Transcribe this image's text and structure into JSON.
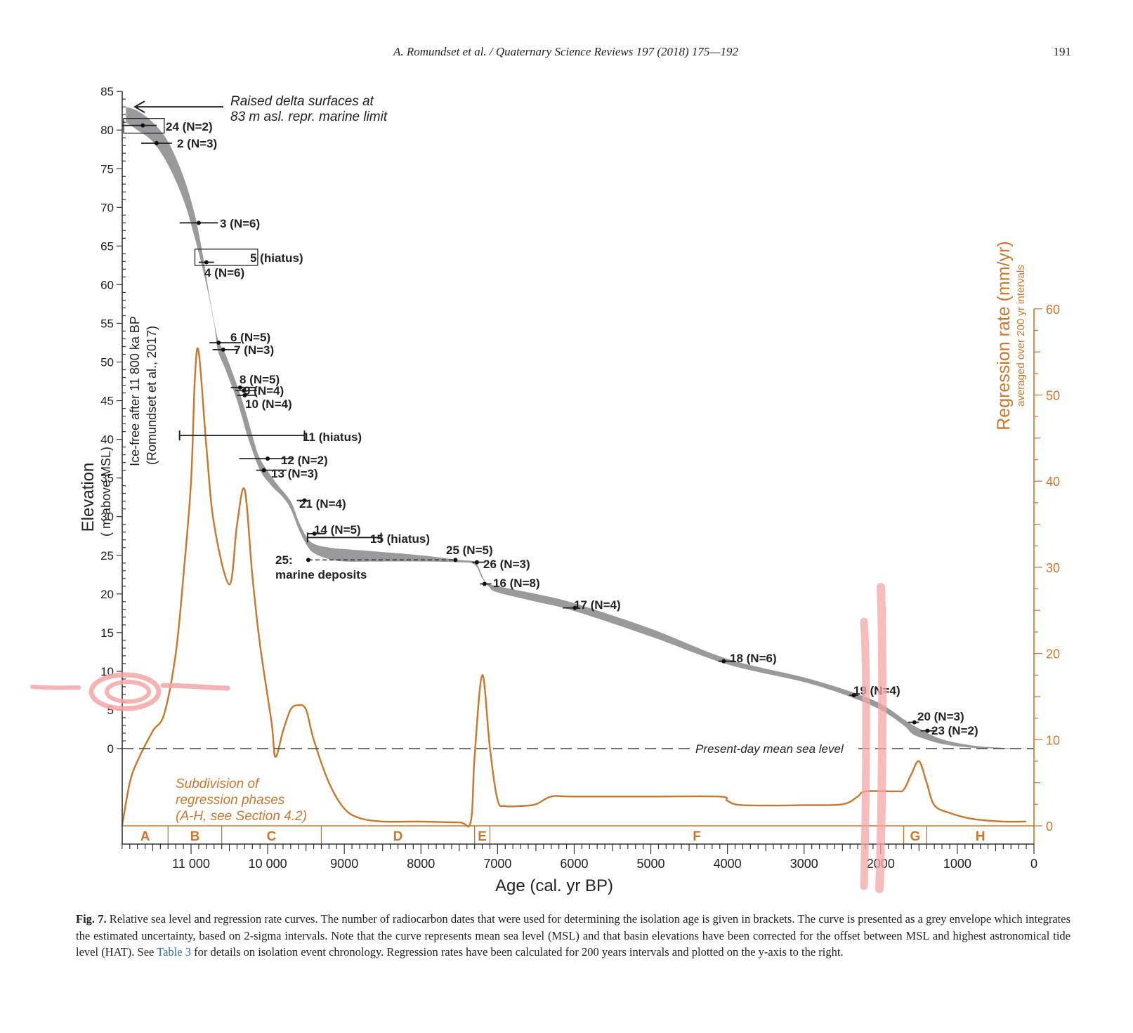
{
  "header": {
    "journal_citation": "A. Romundset et al. / Quaternary Science Reviews 197 (2018) 175—192",
    "page_number": "191"
  },
  "colors": {
    "envelope": "#9a9a9c",
    "regression": "#c8782e",
    "axis": "#333333",
    "annotation_marks": "#f4a6a6",
    "link": "#2a6ea6"
  },
  "chart_data": {
    "type": "line",
    "title": "",
    "xlabel": "Age (cal. yr BP)",
    "ylabel": "Elevation",
    "ylabel_sub": "( m above MSL)",
    "y2label": "Regression rate (mm/yr)",
    "y2label_sub": "averaged over 200 yr intervals",
    "xlim": [
      11900,
      0
    ],
    "ylim": [
      -10,
      85
    ],
    "y2lim": [
      0,
      60
    ],
    "x_ticks": [
      11000,
      10000,
      9000,
      8000,
      7000,
      6000,
      5000,
      4000,
      3000,
      2000,
      1000,
      0
    ],
    "x_tick_labels": [
      "11 000",
      "10 000",
      "9000",
      "8000",
      "7000",
      "6000",
      "5000",
      "4000",
      "3000",
      "2000",
      "1000",
      "0"
    ],
    "y_ticks": [
      0,
      5,
      10,
      15,
      20,
      25,
      30,
      35,
      40,
      45,
      50,
      55,
      60,
      65,
      70,
      75,
      80,
      85
    ],
    "y2_ticks": [
      0,
      10,
      20,
      30,
      40,
      50,
      60
    ],
    "grid": false,
    "annotations": {
      "marine_limit": [
        "Raised delta surfaces at",
        "83 m asl. repr. marine limit"
      ],
      "ice_free": [
        "Ice-free after 11 800 ka BP",
        "(Romundset et al., 2017)"
      ],
      "msl": "Present-day mean sea level",
      "phases_note": [
        "Subdivision of",
        "regression phases",
        "(A-H, see Section 4.2)"
      ],
      "marine_deposits": [
        "25:",
        "marine deposits"
      ]
    },
    "phases": [
      {
        "label": "A",
        "from": 11900,
        "to": 11300
      },
      {
        "label": "B",
        "from": 11300,
        "to": 10600
      },
      {
        "label": "C",
        "from": 10600,
        "to": 9300
      },
      {
        "label": "D",
        "from": 9300,
        "to": 7300
      },
      {
        "label": "E",
        "from": 7300,
        "to": 7100
      },
      {
        "label": "F",
        "from": 7100,
        "to": 1700
      },
      {
        "label": "G",
        "from": 1700,
        "to": 1400
      },
      {
        "label": "H",
        "from": 1400,
        "to": 0
      }
    ],
    "series": [
      {
        "name": "Relative sea level envelope (upper)",
        "axis": "left",
        "x": [
          11850,
          11700,
          11500,
          11300,
          11100,
          10950,
          10850,
          10750,
          10650,
          10550,
          10400,
          10300,
          10200,
          10100,
          9900,
          9700,
          9600,
          9500,
          9400,
          9200,
          9000,
          8600,
          8000,
          7500,
          7300,
          7250,
          7150,
          7000,
          6500,
          6000,
          5000,
          4000,
          3000,
          2400,
          2000,
          1700,
          1500,
          1200,
          800,
          400,
          0
        ],
        "values": [
          83,
          82.5,
          81,
          78.5,
          74,
          69,
          64,
          58,
          53,
          51,
          47,
          44,
          40.5,
          37.5,
          34.5,
          32,
          29.5,
          27.5,
          26.5,
          26,
          25.8,
          25.5,
          25,
          24.4,
          24.2,
          23.5,
          21.5,
          21,
          20,
          18.8,
          15.5,
          11.6,
          9.2,
          7.4,
          5.8,
          3.8,
          2.6,
          1.2,
          0.4,
          0.1,
          0
        ]
      },
      {
        "name": "Relative sea level envelope (lower)",
        "axis": "left",
        "x": [
          11850,
          11700,
          11500,
          11300,
          11100,
          10950,
          10800,
          10700,
          10650,
          10550,
          10400,
          10250,
          10100,
          9950,
          9800,
          9700,
          9600,
          9500,
          9400,
          9200,
          9000,
          8600,
          8000,
          7500,
          7300,
          7200,
          7100,
          7000,
          6500,
          6000,
          5000,
          4000,
          3000,
          2400,
          2000,
          1700,
          1600,
          1500,
          1200,
          800,
          400,
          0
        ],
        "values": [
          81,
          80,
          78.5,
          75.5,
          71,
          66,
          60,
          55,
          51.5,
          49,
          45,
          40,
          36,
          34,
          32.5,
          31,
          28.5,
          26.5,
          25.3,
          24.5,
          24.2,
          24.2,
          24.2,
          24.1,
          23.8,
          22,
          20.8,
          20.2,
          19,
          17.8,
          14.5,
          10.9,
          8.6,
          6.7,
          5,
          3,
          2,
          1.5,
          0.6,
          0.1,
          0,
          0
        ]
      },
      {
        "name": "Regression rate",
        "axis": "right",
        "x": [
          11900,
          11800,
          11700,
          11500,
          11350,
          11200,
          11100,
          11000,
          10950,
          10900,
          10800,
          10700,
          10500,
          10400,
          10300,
          10200,
          10100,
          9950,
          9900,
          9800,
          9700,
          9600,
          9500,
          9400,
          9200,
          9000,
          8800,
          8500,
          8000,
          7500,
          7350,
          7300,
          7200,
          7100,
          7000,
          6900,
          6700,
          6500,
          6300,
          6000,
          5000,
          4100,
          4000,
          3800,
          3000,
          2500,
          2300,
          2200,
          1800,
          1700,
          1600,
          1500,
          1400,
          1300,
          1100,
          800,
          400,
          100
        ],
        "values": [
          0,
          5,
          7.5,
          11,
          13,
          20,
          29,
          40,
          52,
          55,
          44,
          35,
          28,
          35,
          39,
          29,
          21,
          12,
          8,
          11,
          13.5,
          14,
          13.5,
          10,
          5,
          2,
          0.9,
          0.5,
          0.5,
          0.4,
          0.5,
          8,
          17.5,
          9,
          3,
          2.3,
          2.3,
          2.5,
          3.4,
          3.4,
          3.4,
          3.4,
          2.9,
          2.4,
          2.4,
          2.5,
          3.4,
          4,
          4,
          4.2,
          6,
          7.5,
          5,
          2.4,
          1.5,
          0.8,
          0.5,
          0.5
        ]
      }
    ],
    "isolation_points": [
      {
        "label": "24 (N=2)",
        "age": 11630,
        "elev": 80.6,
        "err": [
          11900,
          11450
        ],
        "box": {
          "x": [
            11880,
            11350
          ],
          "y": [
            79.6,
            81.5
          ]
        }
      },
      {
        "label": "2 (N=3)",
        "age": 11450,
        "elev": 78.3,
        "err": [
          11650,
          11250
        ]
      },
      {
        "label": "3 (N=6)",
        "age": 10900,
        "elev": 68,
        "err": [
          11150,
          10650
        ]
      },
      {
        "label": "5 (hiatus)",
        "age": null,
        "elev": 63.5,
        "box": {
          "x": [
            10950,
            10130
          ],
          "y": [
            62.5,
            64.6
          ]
        }
      },
      {
        "label": "4 (N=6)",
        "age": 10800,
        "elev": 62.9,
        "err": [
          10900,
          10700
        ]
      },
      {
        "label": "6 (N=5)",
        "age": 10640,
        "elev": 52.5,
        "err": [
          10760,
          10350
        ]
      },
      {
        "label": "7 (N=3)",
        "age": 10580,
        "elev": 51.6,
        "err": [
          10720,
          10380
        ]
      },
      {
        "label": "8 (N=5)",
        "age": 10360,
        "elev": 46.7,
        "err": [
          10480,
          10150
        ]
      },
      {
        "label": "9 (N=4)",
        "age": 10310,
        "elev": 46.3,
        "err": [
          10420,
          10140
        ]
      },
      {
        "label": "10 (N=4)",
        "age": 10300,
        "elev": 45.7,
        "err": [
          10400,
          10140
        ]
      },
      {
        "label": "11 (hiatus)",
        "age": null,
        "elev": 40.5,
        "err": [
          11150,
          9520
        ]
      },
      {
        "label": "12 (N=2)",
        "age": 10000,
        "elev": 37.5,
        "err": [
          10370,
          9660
        ]
      },
      {
        "label": "13 (N=3)",
        "age": 10050,
        "elev": 36,
        "err": [
          10150,
          9750
        ]
      },
      {
        "label": "21 (N=4)",
        "age": 9520,
        "elev": 32.1,
        "err": [
          9620,
          9480
        ]
      },
      {
        "label": "14 (N=5)",
        "age": 9390,
        "elev": 27.8,
        "err": [
          9480,
          9250
        ]
      },
      {
        "label": "15 (hiatus)",
        "age": null,
        "elev": 27.3,
        "err": [
          9480,
          8520
        ]
      },
      {
        "label": "25 (N=5)",
        "age": 7550,
        "elev": 24.4,
        "err": null
      },
      {
        "label": "25: marine deposits",
        "age": 9470,
        "elev": 24.4,
        "err": null,
        "dashed_to": 7550
      },
      {
        "label": "26 (N=3)",
        "age": 7270,
        "elev": 24.1,
        "err": [
          7330,
          7160
        ]
      },
      {
        "label": "16 (N=8)",
        "age": 7170,
        "elev": 21.3,
        "err": [
          7230,
          7080
        ]
      },
      {
        "label": "17 (N=4)",
        "age": 5990,
        "elev": 18.2,
        "err": [
          6150,
          5990
        ]
      },
      {
        "label": "18 (N=6)",
        "age": 4050,
        "elev": 11.3,
        "err": [
          4120,
          3900
        ]
      },
      {
        "label": "19 (N=4)",
        "age": 2350,
        "elev": 6.9,
        "err": [
          2410,
          2300
        ]
      },
      {
        "label": "20 (N=3)",
        "age": 1560,
        "elev": 3.4,
        "err": [
          1640,
          1500
        ]
      },
      {
        "label": "23 (N=2)",
        "age": 1390,
        "elev": 2.3,
        "err": [
          1480,
          1270
        ]
      }
    ]
  },
  "caption": {
    "label": "Fig. 7.",
    "text_before_link": " Relative sea level and regression rate curves. The number of radiocarbon dates that were used for determining the isolation age is given in brackets. The curve is presented as a grey envelope which integrates the estimated uncertainty, based on 2-sigma intervals. Note that the curve represents mean sea level (MSL) and that basin elevations have been corrected for the offset between MSL and highest astronomical tide level (HAT). See ",
    "link_text": "Table 3",
    "text_after_link": " for details on isolation event chronology. Regression rates have been calculated for 200 years intervals and plotted on the y-axis to the right."
  }
}
